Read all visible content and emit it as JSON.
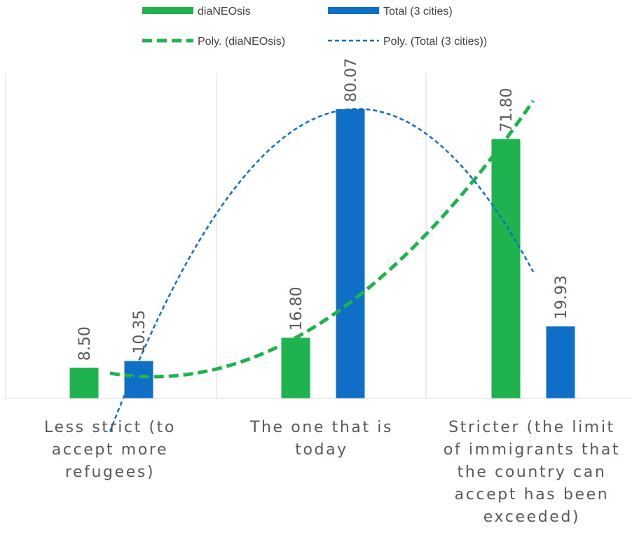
{
  "chart_data": {
    "type": "bar",
    "categories": [
      [
        "Less strict (to",
        "accept more",
        "refugees)"
      ],
      [
        "The one that is",
        "today"
      ],
      [
        "Stricter (the limit",
        "of immigrants that",
        "the country can",
        "accept has been",
        "exceeded)"
      ]
    ],
    "series": [
      {
        "name": "diaNEOsis",
        "values": [
          8.5,
          16.8,
          71.8
        ],
        "labels": [
          "8.50",
          "16.80",
          "71.80"
        ],
        "color": "#1eb34f"
      },
      {
        "name": "Total (3 cities)",
        "values": [
          10.35,
          80.07,
          19.93
        ],
        "labels": [
          "10.35",
          "80.07",
          "19.93"
        ],
        "color": "#0f6fc6"
      }
    ],
    "trendlines": [
      {
        "name": "Poly. (diaNEOsis)",
        "series": "diaNEOsis",
        "type": "polynomial",
        "order": 2,
        "color": "#1eb34f",
        "style": "dashed-thick"
      },
      {
        "name": "Poly. (Total (3 cities))",
        "series": "Total (3 cities)",
        "type": "polynomial",
        "order": 2,
        "color": "#0f6fc6",
        "style": "dotted-thin"
      }
    ],
    "ylim": [
      0,
      90
    ],
    "grid": "vertical-category-separators",
    "legend": "top"
  }
}
